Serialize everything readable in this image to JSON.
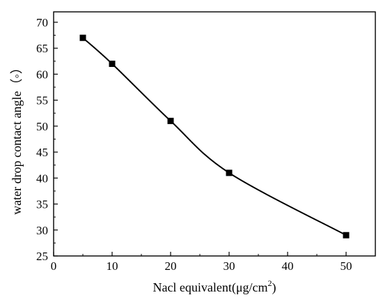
{
  "chart_data": {
    "type": "line",
    "title": "",
    "xlabel": "Nacl equivalent(μg/cm",
    "xlabel_superscript": "2",
    "xlabel_suffix": ")",
    "ylabel": "water drop contact angle（◦）",
    "xlim": [
      0,
      55
    ],
    "ylim": [
      25,
      72
    ],
    "x_ticks": [
      0,
      10,
      20,
      30,
      40,
      50
    ],
    "y_ticks": [
      25,
      30,
      35,
      40,
      45,
      50,
      55,
      60,
      65,
      70
    ],
    "grid": false,
    "legend": "none",
    "line_color": "#000000",
    "marker": "square",
    "series": [
      {
        "x": [
          5,
          10,
          20,
          30,
          50
        ],
        "values": [
          67,
          62,
          51,
          41,
          29
        ]
      }
    ]
  }
}
